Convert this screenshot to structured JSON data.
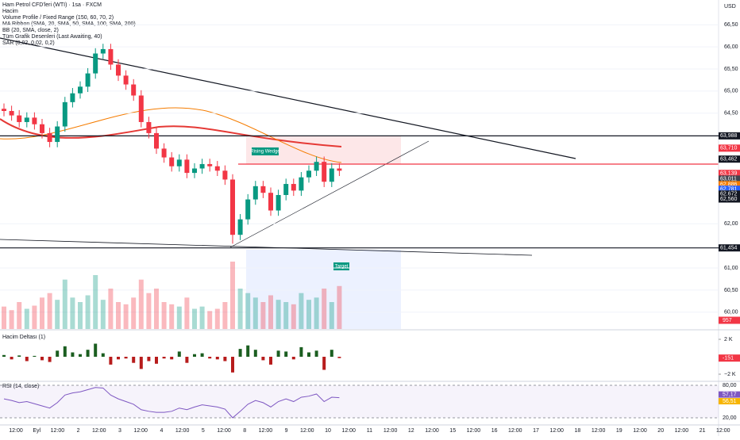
{
  "chart_data": {
    "type": "candlestick",
    "title": "Ham Petrol CFD'leri (WTI) · 1sa · FXCM",
    "indicators": [
      "Hacim",
      "Volume Profile / Fixed Range (150, 60, 70, 2)",
      "MA Ribbon (SMA, 20, SMA, 50, SMA, 100, SMA, 200)",
      "BB (20, SMA, close, 2)",
      "Tüm Grafik Desenleri (Last Awaiting, 40)",
      "SAR (0,02, 0,02, 0,2)"
    ],
    "currency": "USD",
    "annotations": [
      "Rising Wedge",
      "Target"
    ],
    "open": [
      64.6,
      64.55,
      64.45,
      64.3,
      64.4,
      64.25,
      64.05,
      63.85,
      64.2,
      64.75,
      64.95,
      65.1,
      65.4,
      65.85,
      65.95,
      65.6,
      65.35,
      65.15,
      64.9,
      64.3,
      64.05,
      63.7,
      63.5,
      63.3,
      63.45,
      63.15,
      63.25,
      63.35,
      63.3,
      63.2,
      63.0,
      61.75,
      62.1,
      62.55,
      62.85,
      62.7,
      62.3,
      62.65,
      62.9,
      62.75,
      63.05,
      63.2,
      63.4,
      62.95,
      63.25
    ],
    "high": [
      64.72,
      64.67,
      64.57,
      64.52,
      64.52,
      64.37,
      64.17,
      64.32,
      64.87,
      65.07,
      65.22,
      65.52,
      65.97,
      66.07,
      66.07,
      65.72,
      65.47,
      65.27,
      65.02,
      64.42,
      64.17,
      63.82,
      63.62,
      63.57,
      63.57,
      63.37,
      63.47,
      63.47,
      63.42,
      63.32,
      63.12,
      62.22,
      62.67,
      62.97,
      62.97,
      62.82,
      62.77,
      63.02,
      63.02,
      63.17,
      63.32,
      63.52,
      63.52,
      63.37,
      63.37
    ],
    "low": [
      64.43,
      64.33,
      64.18,
      64.18,
      64.13,
      63.93,
      63.73,
      63.73,
      64.08,
      64.63,
      64.83,
      64.98,
      65.28,
      65.73,
      65.48,
      65.23,
      65.03,
      64.78,
      64.18,
      63.93,
      63.58,
      63.38,
      63.18,
      63.18,
      63.03,
      63.03,
      63.13,
      63.18,
      63.08,
      62.88,
      61.55,
      61.63,
      61.98,
      62.43,
      62.58,
      62.18,
      62.18,
      62.53,
      62.63,
      62.63,
      62.93,
      63.08,
      62.83,
      62.83,
      63.08
    ],
    "close": [
      64.55,
      64.45,
      64.3,
      64.4,
      64.25,
      64.05,
      63.85,
      64.2,
      64.75,
      64.95,
      65.1,
      65.4,
      65.85,
      65.95,
      65.6,
      65.35,
      65.15,
      64.9,
      64.3,
      64.05,
      63.7,
      63.5,
      63.3,
      63.45,
      63.15,
      63.25,
      63.35,
      63.3,
      63.2,
      63.0,
      61.75,
      62.1,
      62.55,
      62.85,
      62.7,
      62.3,
      62.65,
      62.9,
      62.75,
      63.05,
      63.2,
      63.4,
      62.95,
      63.25,
      63.2
    ],
    "volumes": [
      500,
      420,
      600,
      450,
      520,
      700,
      800,
      650,
      1100,
      700,
      600,
      750,
      1200,
      650,
      900,
      600,
      550,
      700,
      1100,
      800,
      900,
      600,
      550,
      500,
      700,
      450,
      500,
      400,
      450,
      600,
      1500,
      900,
      800,
      700,
      600,
      750,
      650,
      600,
      550,
      800,
      650,
      700,
      900,
      600,
      957
    ],
    "volume_ylim": [
      0,
      1500
    ],
    "ylim": [
      59.62,
      67.06
    ],
    "yticks": [
      {
        "value": 66.5,
        "label": "66,50"
      },
      {
        "value": 66,
        "label": "66,00"
      },
      {
        "value": 65.5,
        "label": "65,50"
      },
      {
        "value": 65,
        "label": "65,00"
      },
      {
        "value": 64.5,
        "label": "64,50"
      },
      {
        "value": 62,
        "label": "62,00"
      },
      {
        "value": 61,
        "label": "61,00"
      },
      {
        "value": 60.5,
        "label": "60,50"
      },
      {
        "value": 60,
        "label": "60,00"
      }
    ],
    "price_tags": [
      {
        "value": 63.988,
        "label": "63,988",
        "color": "#131722"
      },
      {
        "value": 63.71,
        "label": "63,710",
        "color": "#f23645"
      },
      {
        "value": 63.462,
        "label": "63,462",
        "color": "#131722"
      },
      {
        "value": 63.139,
        "label": "63,139",
        "color": "#f23645"
      },
      {
        "value": 63.011,
        "label": "63,011",
        "color": "#434651"
      },
      {
        "value": 62.886,
        "label": "62,886",
        "color": "#f57c00"
      },
      {
        "value": 62.781,
        "label": "62,781",
        "color": "#2962ff"
      },
      {
        "value": 62.672,
        "label": "62,672",
        "color": "#131722"
      },
      {
        "value": 62.56,
        "label": "62,560",
        "color": "#131722"
      },
      {
        "value": 61.454,
        "label": "61,454",
        "color": "#131722"
      }
    ],
    "xticks": [
      "12:00",
      "Eyl",
      "12:00",
      "2",
      "12:00",
      "3",
      "12:00",
      "4",
      "12:00",
      "5",
      "12:00",
      "8",
      "12:00",
      "9",
      "12:00",
      "10",
      "12:00",
      "11",
      "12:00",
      "12",
      "12:00",
      "15",
      "12:00",
      "16",
      "12:00",
      "17",
      "12:00",
      "18",
      "12:00",
      "19",
      "12:00",
      "20",
      "12:00",
      "21",
      "12:00"
    ],
    "delta": {
      "title": "Hacim Deltası (1)",
      "values": [
        200,
        -300,
        150,
        -500,
        100,
        -400,
        -600,
        700,
        1200,
        500,
        300,
        800,
        1500,
        400,
        -900,
        -300,
        -200,
        -700,
        -1400,
        -500,
        -800,
        -200,
        -300,
        600,
        -700,
        300,
        400,
        -200,
        -300,
        -500,
        -1800,
        900,
        1300,
        800,
        -400,
        -900,
        700,
        600,
        -300,
        1100,
        500,
        700,
        -1500,
        800,
        -151
      ],
      "ylim": [
        -2727,
        2909
      ],
      "yticks": [
        {
          "value": 2000,
          "label": "2 K"
        },
        {
          "value": -2000,
          "label": "−2 K"
        }
      ]
    },
    "rsi": {
      "title": "RSI (14, close)",
      "values": [
        55,
        52,
        48,
        50,
        46,
        42,
        38,
        48,
        62,
        66,
        68,
        72,
        76,
        75,
        62,
        55,
        50,
        45,
        35,
        32,
        30,
        30,
        32,
        38,
        35,
        40,
        44,
        42,
        40,
        36,
        20,
        32,
        45,
        52,
        48,
        40,
        50,
        55,
        50,
        58,
        60,
        64,
        50,
        58,
        57.17
      ],
      "ylim": [
        8.3,
        85.9
      ],
      "yticks": [
        {
          "value": 80,
          "label": "80,00"
        },
        {
          "value": 20,
          "label": "20,00"
        }
      ],
      "tags": [
        {
          "value": 57.17,
          "label": "57,17",
          "color": "#7e57c2"
        },
        {
          "value": 56.51,
          "label": "56,51",
          "color": "#f7b500"
        }
      ]
    },
    "up_color": "#089981",
    "down_color": "#f23645"
  }
}
